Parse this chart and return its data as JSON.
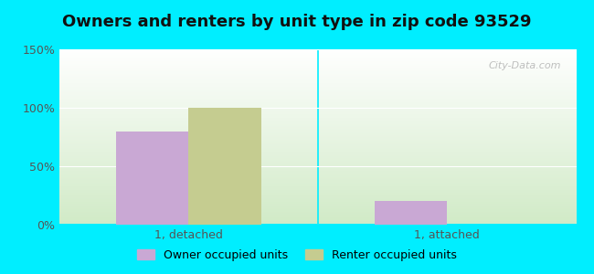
{
  "title": "Owners and renters by unit type in zip code 93529",
  "categories": [
    "1, detached",
    "1, attached"
  ],
  "owner_values": [
    80,
    20
  ],
  "renter_values": [
    100,
    0
  ],
  "owner_color": "#c9a8d4",
  "renter_color": "#c5cc90",
  "bar_width": 0.28,
  "ylim": [
    0,
    150
  ],
  "yticks": [
    0,
    50,
    100,
    150
  ],
  "ytick_labels": [
    "0%",
    "50%",
    "100%",
    "150%"
  ],
  "legend_owner": "Owner occupied units",
  "legend_renter": "Renter occupied units",
  "background_outer": "#00eeff",
  "watermark": "City-Data.com",
  "title_fontsize": 13,
  "tick_fontsize": 9,
  "legend_fontsize": 9
}
